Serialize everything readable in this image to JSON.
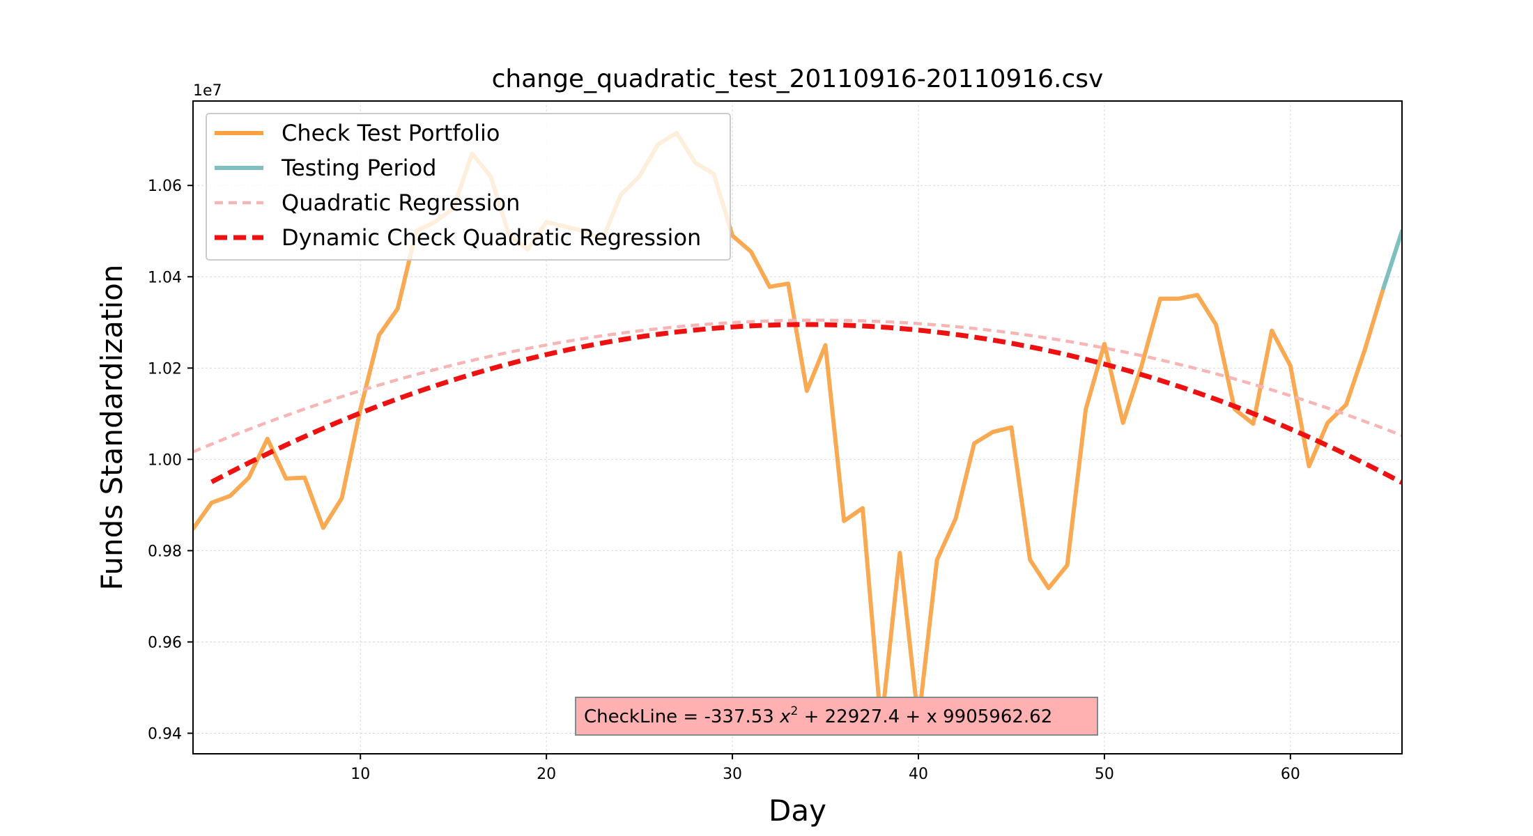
{
  "chart_data": {
    "type": "line",
    "title": "change_quadratic_test_20110916-20110916.csv",
    "xlabel": "Day",
    "ylabel": "Funds Standardization",
    "y_offset_label": "1e7",
    "xlim": [
      1,
      66
    ],
    "ylim": [
      0.9355,
      1.0785
    ],
    "x_ticks": [
      10,
      20,
      30,
      40,
      50,
      60
    ],
    "y_ticks": [
      0.94,
      0.96,
      0.98,
      1.0,
      1.02,
      1.04,
      1.06
    ],
    "y_tick_labels": [
      "0.94",
      "0.96",
      "0.98",
      "1.00",
      "1.02",
      "1.04",
      "1.06"
    ],
    "grid": true,
    "legend_placement": "upper-left",
    "series": [
      {
        "name": "Check Test Portfolio",
        "color": "#f9a040",
        "style": "solid",
        "x": [
          1,
          2,
          3,
          4,
          5,
          6,
          7,
          8,
          9,
          10,
          11,
          12,
          13,
          14,
          15,
          16,
          17,
          18,
          19,
          20,
          21,
          22,
          23,
          24,
          25,
          26,
          27,
          28,
          29,
          30,
          31,
          32,
          33,
          34,
          35,
          36,
          37,
          38,
          39,
          40,
          41,
          42,
          43,
          44,
          45,
          46,
          47,
          48,
          49,
          50,
          51,
          52,
          53,
          54,
          55,
          56,
          57,
          58,
          59,
          60,
          61,
          62,
          63,
          64,
          65
        ],
        "y": [
          0.9848,
          0.9905,
          0.992,
          0.996,
          1.0045,
          0.9958,
          0.996,
          0.985,
          0.9915,
          1.011,
          1.0272,
          1.033,
          1.05,
          1.052,
          1.055,
          1.067,
          1.062,
          1.049,
          1.046,
          1.052,
          1.051,
          1.05,
          1.048,
          1.058,
          1.062,
          1.069,
          1.0715,
          1.065,
          1.0625,
          1.049,
          1.0455,
          1.0378,
          1.0385,
          1.015,
          1.025,
          0.9865,
          0.9893,
          0.9415,
          0.9795,
          0.9425,
          0.978,
          0.987,
          1.0035,
          1.006,
          1.007,
          0.978,
          0.9718,
          0.9768,
          1.011,
          1.0253,
          1.008,
          1.0205,
          1.0352,
          1.0352,
          1.036,
          1.0295,
          1.011,
          1.0078,
          1.0282,
          1.0205,
          0.9985,
          1.008,
          1.012,
          1.024,
          1.0375
        ]
      },
      {
        "name": "Testing Period",
        "color": "#7fbfbf",
        "style": "solid",
        "x": [
          65,
          66
        ],
        "y": [
          1.0375,
          1.05
        ]
      },
      {
        "name": "Quadratic Regression",
        "color": "#f7b5b5",
        "style": "dashed",
        "quadratic_coeffs": [
          -2.56e-05,
          0.00177,
          0.9999
        ],
        "x_range": [
          1,
          66
        ]
      },
      {
        "name": "Dynamic Check Quadratic Regression",
        "color": "#ee1111",
        "style": "dashed",
        "quadratic_coeffs": [
          -3.375e-05,
          0.00229274,
          0.99059626
        ],
        "x_range": [
          2,
          66
        ]
      }
    ],
    "annotation": {
      "prefix": "CheckLine = -337.53 ",
      "var": "x",
      "sup": "2",
      "suffix": " + 22927.4 + x 9905962.62",
      "background": "#ffb0b0"
    }
  }
}
